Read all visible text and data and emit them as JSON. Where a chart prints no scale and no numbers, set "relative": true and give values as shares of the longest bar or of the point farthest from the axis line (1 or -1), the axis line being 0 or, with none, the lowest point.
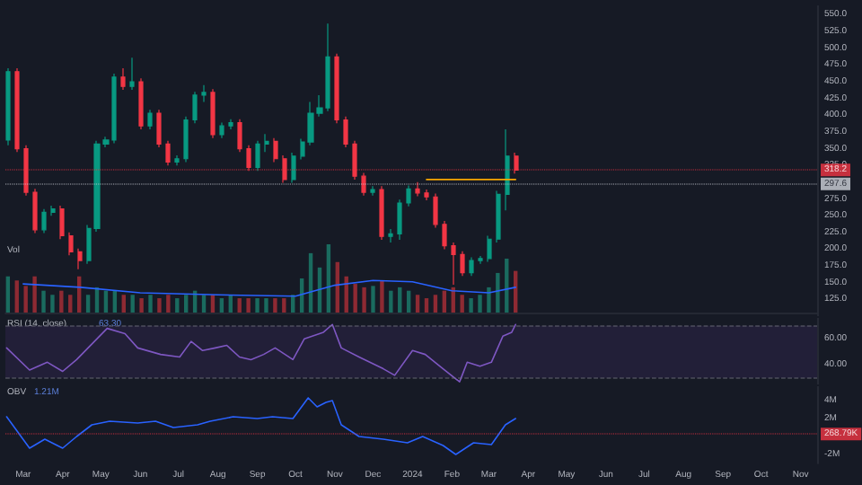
{
  "chart_data": [
    {
      "type": "candlestick",
      "xlim": [
        "2023-02-15",
        "2024-11-14"
      ],
      "ylim": [
        100,
        564
      ],
      "tick_labels": "y",
      "yticks": [
        {
          "value": 125,
          "label": "125.0"
        },
        {
          "value": 150,
          "label": "150.0"
        },
        {
          "value": 175,
          "label": "175.0"
        },
        {
          "value": 200,
          "label": "200.0"
        },
        {
          "value": 225,
          "label": "225.0"
        },
        {
          "value": 250,
          "label": "250.0"
        },
        {
          "value": 275,
          "label": "275.0"
        },
        {
          "value": 325,
          "label": "325.0"
        },
        {
          "value": 350,
          "label": "350.0"
        },
        {
          "value": 375,
          "label": "375.0"
        },
        {
          "value": 400,
          "label": "400.0"
        },
        {
          "value": 425,
          "label": "425.0"
        },
        {
          "value": 450,
          "label": "450.0"
        },
        {
          "value": 475,
          "label": "475.0"
        },
        {
          "value": 500,
          "label": "500.0"
        },
        {
          "value": 525,
          "label": "525.0"
        },
        {
          "value": 550,
          "label": "550.0"
        }
      ],
      "series": [
        {
          "x": [
            "2023-02-17",
            "2023-02-24",
            "2023-03-03",
            "2023-03-10",
            "2023-03-17",
            "2023-03-24",
            "2023-03-31",
            "2023-04-07",
            "2023-04-14",
            "2023-04-21",
            "2023-04-28",
            "2023-05-05",
            "2023-05-12",
            "2023-05-19",
            "2023-05-26",
            "2023-06-02",
            "2023-06-09",
            "2023-06-16",
            "2023-06-23",
            "2023-06-30",
            "2023-07-07",
            "2023-07-14",
            "2023-07-21",
            "2023-07-28",
            "2023-08-04",
            "2023-08-11",
            "2023-08-18",
            "2023-08-25",
            "2023-09-01",
            "2023-09-08",
            "2023-09-15",
            "2023-09-22",
            "2023-09-29",
            "2023-10-06",
            "2023-10-13",
            "2023-10-20",
            "2023-10-27",
            "2023-11-03",
            "2023-11-10",
            "2023-11-17",
            "2023-11-24",
            "2023-12-01",
            "2023-12-08",
            "2023-12-15",
            "2023-12-22",
            "2023-12-29",
            "2024-01-05",
            "2024-01-12",
            "2024-01-19",
            "2024-01-26",
            "2024-02-02",
            "2024-02-09",
            "2024-02-16",
            "2024-02-23",
            "2024-03-01",
            "2024-03-08",
            "2024-03-15",
            "2024-03-22"
          ],
          "ohlc": [
            [
              363,
              470,
              355,
              465
            ],
            [
              465,
              470,
              345,
              350
            ],
            [
              350,
              355,
              280,
              285
            ],
            [
              285,
              290,
              224,
              229
            ],
            [
              229,
              260,
              224,
              255
            ],
            [
              255,
              265,
              250,
              260
            ],
            [
              260,
              265,
              215,
              220
            ],
            [
              220,
              225,
              191,
              196
            ],
            [
              196,
              201,
              170,
              183
            ],
            [
              183,
              236,
              178,
              231
            ],
            [
              231,
              362,
              226,
              357
            ],
            [
              357,
              368,
              352,
              363
            ],
            [
              363,
              462,
              358,
              457
            ],
            [
              457,
              470,
              438,
              443
            ],
            [
              443,
              486,
              438,
              450
            ],
            [
              450,
              455,
              379,
              384
            ],
            [
              384,
              408,
              379,
              403
            ],
            [
              403,
              408,
              352,
              357
            ],
            [
              357,
              362,
              325,
              330
            ],
            [
              330,
              340,
              325,
              335
            ],
            [
              335,
              398,
              330,
              393
            ],
            [
              393,
              435,
              388,
              430
            ],
            [
              430,
              445,
              420,
              434
            ],
            [
              434,
              439,
              366,
              371
            ],
            [
              371,
              389,
              366,
              384
            ],
            [
              384,
              394,
              379,
              389
            ],
            [
              389,
              394,
              345,
              350
            ],
            [
              350,
              355,
              317,
              322
            ],
            [
              322,
              362,
              317,
              357
            ],
            [
              357,
              372,
              345,
              361
            ],
            [
              361,
              366,
              330,
              335
            ],
            [
              335,
              340,
              299,
              304
            ],
            [
              304,
              344,
              299,
              339
            ],
            [
              339,
              365,
              334,
              360
            ],
            [
              360,
              420,
              355,
              403
            ],
            [
              403,
              430,
              398,
              411
            ],
            [
              411,
              537,
              406,
              487
            ],
            [
              487,
              492,
              388,
              393
            ],
            [
              393,
              398,
              352,
              357
            ],
            [
              357,
              362,
              304,
              309
            ],
            [
              309,
              314,
              280,
              285
            ],
            [
              285,
              294,
              280,
              289
            ],
            [
              289,
              294,
              214,
              219
            ],
            [
              219,
              230,
              210,
              223
            ],
            [
              223,
              274,
              214,
              269
            ],
            [
              269,
              295,
              264,
              290
            ],
            [
              290,
              300,
              279,
              284
            ],
            [
              284,
              289,
              273,
              278
            ],
            [
              278,
              283,
              232,
              237
            ],
            [
              237,
              242,
              200,
              205
            ],
            [
              205,
              210,
              147,
              192
            ],
            [
              192,
              197,
              160,
              165
            ],
            [
              165,
              188,
              160,
              183
            ],
            [
              183,
              190,
              178,
              186
            ],
            [
              186,
              220,
              181,
              215
            ],
            [
              215,
              287,
              210,
              282
            ],
            [
              282,
              379,
              258,
              339
            ],
            [
              339,
              344,
              313,
              318
            ]
          ],
          "colors": [
            "#089981",
            "#f23645",
            "#f23645",
            "#f23645",
            "#089981",
            "#089981",
            "#f23645",
            "#f23645",
            "#f23645",
            "#089981",
            "#089981",
            "#089981",
            "#089981",
            "#f23645",
            "#089981",
            "#f23645",
            "#089981",
            "#f23645",
            "#f23645",
            "#089981",
            "#089981",
            "#089981",
            "#089981",
            "#f23645",
            "#089981",
            "#089981",
            "#f23645",
            "#f23645",
            "#089981",
            "#089981",
            "#f23645",
            "#f23645",
            "#089981",
            "#089981",
            "#089981",
            "#089981",
            "#089981",
            "#f23645",
            "#f23645",
            "#f23645",
            "#f23645",
            "#089981",
            "#f23645",
            "#089981",
            "#089981",
            "#089981",
            "#f23645",
            "#f23645",
            "#f23645",
            "#f23645",
            "#f23645",
            "#f23645",
            "#089981",
            "#089981",
            "#089981",
            "#089981",
            "#089981",
            "#f23645"
          ]
        },
        {
          "type": "line",
          "color": "#f7a600",
          "x": [
            "2024-01-12",
            "2024-03-22"
          ],
          "values": [
            304,
            304
          ]
        }
      ],
      "ref_lines": [
        {
          "axis": "y",
          "value": 297.6,
          "label": "297.6",
          "color": "#d1d4dc",
          "line_style": "dotted"
        },
        {
          "axis": "y",
          "value": 318.2,
          "label": "318.2",
          "color": "#f23645",
          "line_style": "dotted"
        }
      ]
    },
    {
      "type": "bar",
      "title": "Vol",
      "relative": true,
      "xlim": [
        "2023-02-15",
        "2024-11-14"
      ],
      "tick_labels": false,
      "series": [
        {
          "x": [
            "2023-02-17",
            "2023-02-24",
            "2023-03-03",
            "2023-03-10",
            "2023-03-17",
            "2023-03-24",
            "2023-03-31",
            "2023-04-07",
            "2023-04-14",
            "2023-04-21",
            "2023-04-28",
            "2023-05-05",
            "2023-05-12",
            "2023-05-19",
            "2023-05-26",
            "2023-06-02",
            "2023-06-09",
            "2023-06-16",
            "2023-06-23",
            "2023-06-30",
            "2023-07-07",
            "2023-07-14",
            "2023-07-21",
            "2023-07-28",
            "2023-08-04",
            "2023-08-11",
            "2023-08-18",
            "2023-08-25",
            "2023-09-01",
            "2023-09-08",
            "2023-09-15",
            "2023-09-22",
            "2023-09-29",
            "2023-10-06",
            "2023-10-13",
            "2023-10-20",
            "2023-10-27",
            "2023-11-03",
            "2023-11-10",
            "2023-11-17",
            "2023-11-24",
            "2023-12-01",
            "2023-12-08",
            "2023-12-15",
            "2023-12-22",
            "2023-12-29",
            "2024-01-05",
            "2024-01-12",
            "2024-01-19",
            "2024-01-26",
            "2024-02-02",
            "2024-02-09",
            "2024-02-16",
            "2024-02-23",
            "2024-03-01",
            "2024-03-08",
            "2024-03-15",
            "2024-03-22"
          ],
          "values": [
            0.53,
            0.47,
            0.39,
            0.53,
            0.32,
            0.26,
            0.32,
            0.26,
            0.53,
            0.26,
            0.37,
            0.32,
            0.32,
            0.26,
            0.26,
            0.21,
            0.26,
            0.21,
            0.26,
            0.21,
            0.26,
            0.32,
            0.26,
            0.26,
            0.21,
            0.26,
            0.21,
            0.21,
            0.21,
            0.21,
            0.21,
            0.21,
            0.26,
            0.5,
            0.87,
            0.66,
            1,
            0.74,
            0.53,
            0.42,
            0.37,
            0.39,
            0.47,
            0.32,
            0.37,
            0.32,
            0.26,
            0.21,
            0.26,
            0.32,
            0.37,
            0.26,
            0.21,
            0.26,
            0.37,
            0.58,
            0.79,
            0.61
          ],
          "colors": [
            "#1a6b5f",
            "#8e2a33",
            "#8e2a33",
            "#8e2a33",
            "#1a6b5f",
            "#1a6b5f",
            "#8e2a33",
            "#8e2a33",
            "#8e2a33",
            "#1a6b5f",
            "#1a6b5f",
            "#1a6b5f",
            "#1a6b5f",
            "#8e2a33",
            "#1a6b5f",
            "#8e2a33",
            "#1a6b5f",
            "#8e2a33",
            "#8e2a33",
            "#1a6b5f",
            "#1a6b5f",
            "#1a6b5f",
            "#1a6b5f",
            "#8e2a33",
            "#1a6b5f",
            "#1a6b5f",
            "#8e2a33",
            "#8e2a33",
            "#1a6b5f",
            "#1a6b5f",
            "#8e2a33",
            "#8e2a33",
            "#1a6b5f",
            "#1a6b5f",
            "#1a6b5f",
            "#1a6b5f",
            "#1a6b5f",
            "#8e2a33",
            "#8e2a33",
            "#8e2a33",
            "#8e2a33",
            "#1a6b5f",
            "#8e2a33",
            "#1a6b5f",
            "#1a6b5f",
            "#1a6b5f",
            "#8e2a33",
            "#8e2a33",
            "#8e2a33",
            "#8e2a33",
            "#8e2a33",
            "#8e2a33",
            "#1a6b5f",
            "#1a6b5f",
            "#1a6b5f",
            "#1a6b5f",
            "#1a6b5f",
            "#8e2a33"
          ]
        },
        {
          "type": "line",
          "color": "#2962ff",
          "x": [
            "2023-03-01",
            "2023-04-15",
            "2023-06-01",
            "2023-08-01",
            "2023-10-01",
            "2023-11-01",
            "2023-12-01",
            "2024-01-01",
            "2024-02-01",
            "2024-03-01",
            "2024-03-22"
          ],
          "values": [
            0.42,
            0.37,
            0.29,
            0.26,
            0.24,
            0.4,
            0.47,
            0.45,
            0.32,
            0.29,
            0.37
          ]
        }
      ]
    },
    {
      "type": "line",
      "title": "RSI (14, close)",
      "annotations": [
        "63.30"
      ],
      "xlim": [
        "2023-02-15",
        "2024-11-14"
      ],
      "ylim": [
        25,
        76
      ],
      "tick_labels": "y",
      "yticks": [
        {
          "value": 40,
          "label": "40.00"
        },
        {
          "value": 60,
          "label": "60.00"
        }
      ],
      "series": [
        {
          "color": "#7e57c2",
          "x": [
            "2023-02-16",
            "2023-03-06",
            "2023-03-20",
            "2023-04-01",
            "2023-04-12",
            "2023-05-06",
            "2023-05-20",
            "2023-05-30",
            "2023-06-17",
            "2023-07-02",
            "2023-07-11",
            "2023-07-20",
            "2023-07-30",
            "2023-08-08",
            "2023-08-18",
            "2023-08-27",
            "2023-09-06",
            "2023-09-15",
            "2023-09-29",
            "2023-10-08",
            "2023-10-23",
            "2023-10-30",
            "2023-11-06",
            "2023-11-20",
            "2023-12-09",
            "2023-12-18",
            "2024-01-01",
            "2024-01-11",
            "2024-01-25",
            "2024-02-07",
            "2024-02-13",
            "2024-02-23",
            "2024-03-03",
            "2024-03-12",
            "2024-03-19",
            "2024-03-22"
          ],
          "values": [
            53,
            36,
            42,
            35,
            44,
            68,
            64,
            53,
            48,
            46,
            58,
            51,
            53,
            55,
            46,
            44,
            48,
            53,
            44,
            60,
            65,
            71,
            53,
            46,
            37,
            32,
            51,
            48,
            37,
            27,
            42,
            39,
            42,
            62,
            65,
            71
          ]
        }
      ],
      "bands": [
        {
          "axis": "y",
          "from": 30,
          "to": 70,
          "color": "#221f38"
        }
      ],
      "ref_lines": [
        {
          "axis": "y",
          "value": 70,
          "color": "#787b86",
          "line_style": "dashed"
        },
        {
          "axis": "y",
          "value": 30,
          "color": "#787b86",
          "line_style": "dashed"
        }
      ]
    },
    {
      "type": "line",
      "title": "OBV",
      "annotations": [
        "1.21M"
      ],
      "xlim": [
        "2023-02-15",
        "2024-11-14"
      ],
      "ylim": [
        -3,
        5.6
      ],
      "xticks": [
        {
          "value": "2023-03-01",
          "label": "Mar"
        },
        {
          "value": "2023-04-01",
          "label": "Apr"
        },
        {
          "value": "2023-05-01",
          "label": "May"
        },
        {
          "value": "2023-06-01",
          "label": "Jun"
        },
        {
          "value": "2023-07-01",
          "label": "Jul"
        },
        {
          "value": "2023-08-01",
          "label": "Aug"
        },
        {
          "value": "2023-09-01",
          "label": "Sep"
        },
        {
          "value": "2023-10-01",
          "label": "Oct"
        },
        {
          "value": "2023-11-01",
          "label": "Nov"
        },
        {
          "value": "2023-12-01",
          "label": "Dec"
        },
        {
          "value": "2024-01-01",
          "label": "2024"
        },
        {
          "value": "2024-02-01",
          "label": "Feb"
        },
        {
          "value": "2024-03-01",
          "label": "Mar"
        },
        {
          "value": "2024-04-01",
          "label": "Apr"
        },
        {
          "value": "2024-05-01",
          "label": "May"
        },
        {
          "value": "2024-06-01",
          "label": "Jun"
        },
        {
          "value": "2024-07-01",
          "label": "Jul"
        },
        {
          "value": "2024-08-01",
          "label": "Aug"
        },
        {
          "value": "2024-09-01",
          "label": "Sep"
        },
        {
          "value": "2024-10-01",
          "label": "Oct"
        },
        {
          "value": "2024-11-01",
          "label": "Nov"
        }
      ],
      "yticks": [
        {
          "value": -2,
          "label": "-2M"
        },
        {
          "value": 2,
          "label": "2M"
        },
        {
          "value": 4,
          "label": "4M"
        }
      ],
      "series": [
        {
          "color": "#2962ff",
          "x": [
            "2023-02-16",
            "2023-03-06",
            "2023-03-18",
            "2023-04-01",
            "2023-04-12",
            "2023-04-24",
            "2023-05-08",
            "2023-05-30",
            "2023-06-13",
            "2023-06-27",
            "2023-07-16",
            "2023-07-26",
            "2023-08-13",
            "2023-09-01",
            "2023-09-13",
            "2023-09-29",
            "2023-10-11",
            "2023-10-18",
            "2023-10-25",
            "2023-10-30",
            "2023-11-06",
            "2023-11-20",
            "2023-12-09",
            "2023-12-28",
            "2024-01-09",
            "2024-01-25",
            "2024-02-04",
            "2024-02-18",
            "2024-03-03",
            "2024-03-14",
            "2024-03-22"
          ],
          "values": [
            2.2,
            -1.3,
            -0.3,
            -1.3,
            0,
            1.3,
            1.7,
            1.5,
            1.7,
            1.0,
            1.3,
            1.7,
            2.2,
            2.0,
            2.2,
            2.0,
            4.3,
            3.3,
            3.8,
            4.0,
            1.3,
            0,
            -0.3,
            -0.7,
            0,
            -1.0,
            -2.0,
            -0.7,
            -0.9,
            1.3,
            2.0
          ]
        }
      ],
      "ref_lines": [
        {
          "axis": "y",
          "value": 0.27,
          "label": "268.79K",
          "color": "#f23645",
          "line_style": "dotted"
        }
      ]
    }
  ]
}
